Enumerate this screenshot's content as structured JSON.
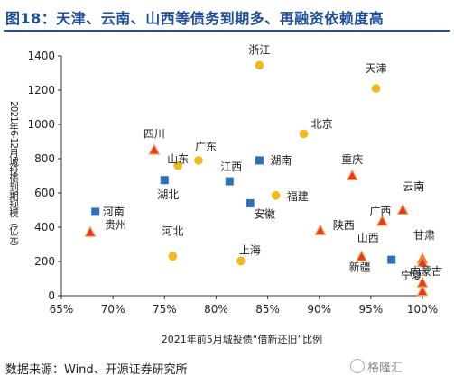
{
  "figure": {
    "title": "图18：天津、云南、山西等债务到期多、再融资依赖度高",
    "source": "数据来源：Wind、开源证券研究所",
    "watermark": "格隆汇"
  },
  "colors": {
    "title_blue": "#1f4e9a",
    "square_blue": "#2e6fba",
    "circle_yellow": "#f2b81c",
    "triangle_red": "#e23a25",
    "triangle_edge": "#f7a14a"
  },
  "chart_data": {
    "type": "scatter",
    "xlabel": "2021年前5月城投债“借新还旧”比例",
    "ylabel": "2021年6-12月城投债到期规模（亿元）",
    "xlim": [
      0.65,
      1.0
    ],
    "ylim": [
      0,
      1400
    ],
    "x_ticks": [
      0.65,
      0.7,
      0.75,
      0.8,
      0.85,
      0.9,
      0.95,
      1.0
    ],
    "x_tick_labels": [
      "65%",
      "70%",
      "75%",
      "80%",
      "85%",
      "90%",
      "95%",
      "100%"
    ],
    "y_ticks": [
      0,
      200,
      400,
      600,
      800,
      1000,
      1200,
      1400
    ],
    "y_tick_labels": [
      "0",
      "200",
      "400",
      "600",
      "800",
      "1000",
      "1200",
      "1400"
    ],
    "grid": false,
    "legend": "none",
    "series": [
      {
        "marker": "square",
        "color": "#2e6fba",
        "points": [
          {
            "label": "河南",
            "x": 0.683,
            "y": 490
          },
          {
            "label": "湖北",
            "x": 0.75,
            "y": 675
          },
          {
            "label": "江西",
            "x": 0.813,
            "y": 668
          },
          {
            "label": "湖南",
            "x": 0.842,
            "y": 790
          },
          {
            "label": "安徽",
            "x": 0.833,
            "y": 540
          },
          {
            "label": "山西",
            "x": 0.97,
            "y": 210
          }
        ]
      },
      {
        "marker": "circle",
        "color": "#f2b81c",
        "points": [
          {
            "label": "浙江",
            "x": 0.842,
            "y": 1345
          },
          {
            "label": "天津",
            "x": 0.955,
            "y": 1210
          },
          {
            "label": "北京",
            "x": 0.885,
            "y": 945
          },
          {
            "label": "山东",
            "x": 0.763,
            "y": 760
          },
          {
            "label": "广东",
            "x": 0.783,
            "y": 790
          },
          {
            "label": "福建",
            "x": 0.858,
            "y": 585
          },
          {
            "label": "河北",
            "x": 0.758,
            "y": 230
          },
          {
            "label": "上海",
            "x": 0.824,
            "y": 203
          }
        ]
      },
      {
        "marker": "triangle",
        "color": "#e23a25",
        "points": [
          {
            "label": "四川",
            "x": 0.74,
            "y": 850
          },
          {
            "label": "贵州",
            "x": 0.678,
            "y": 370
          },
          {
            "label": "重庆",
            "x": 0.932,
            "y": 700
          },
          {
            "label": "陕西",
            "x": 0.901,
            "y": 380
          },
          {
            "label": "广西",
            "x": 0.961,
            "y": 435
          },
          {
            "label": "云南",
            "x": 0.981,
            "y": 500
          },
          {
            "label": "甘肃",
            "x": 1.0,
            "y": 215
          },
          {
            "label": "新疆",
            "x": 0.941,
            "y": 228
          },
          {
            "label": "内蒙古",
            "x": 1.0,
            "y": 195
          },
          {
            "label": "宁夏",
            "x": 1.0,
            "y": 75
          },
          {
            "label": "",
            "x": 1.0,
            "y": 25
          }
        ]
      }
    ]
  }
}
